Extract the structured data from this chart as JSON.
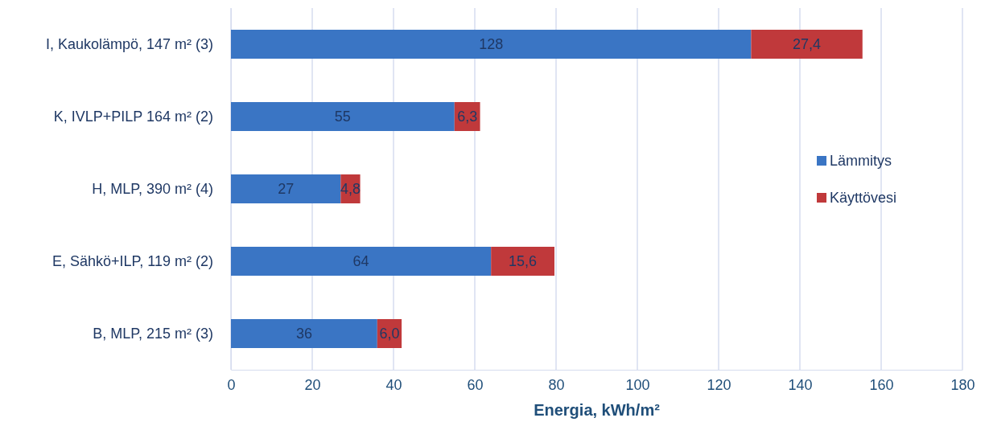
{
  "chart_data": {
    "type": "bar",
    "orientation": "horizontal",
    "stacked": true,
    "xlabel": "Energia, kWh/m²",
    "categories": [
      "I, Kaukolämpö, 147 m² (3)",
      "K, IVLP+PILP 164 m² (2)",
      "H, MLP, 390 m² (4)",
      "E, Sähkö+ILP, 119 m² (2)",
      "B, MLP, 215 m² (3)"
    ],
    "series": [
      {
        "name": "Lämmitys",
        "color": "#3a75c4",
        "values": [
          128,
          55,
          27,
          64,
          36
        ],
        "value_labels": [
          "128",
          "55",
          "27",
          "64",
          "36"
        ]
      },
      {
        "name": "Käyttövesi",
        "color": "#c0393b",
        "values": [
          27.4,
          6.3,
          4.8,
          15.6,
          6.0
        ],
        "value_labels": [
          "27,4",
          "6,3",
          "4,8",
          "15,6",
          "6,0"
        ]
      }
    ],
    "xlim": [
      0,
      180
    ],
    "xticks": [
      0,
      20,
      40,
      60,
      80,
      100,
      120,
      140,
      160,
      180
    ],
    "grid": "x",
    "legend": "right"
  }
}
